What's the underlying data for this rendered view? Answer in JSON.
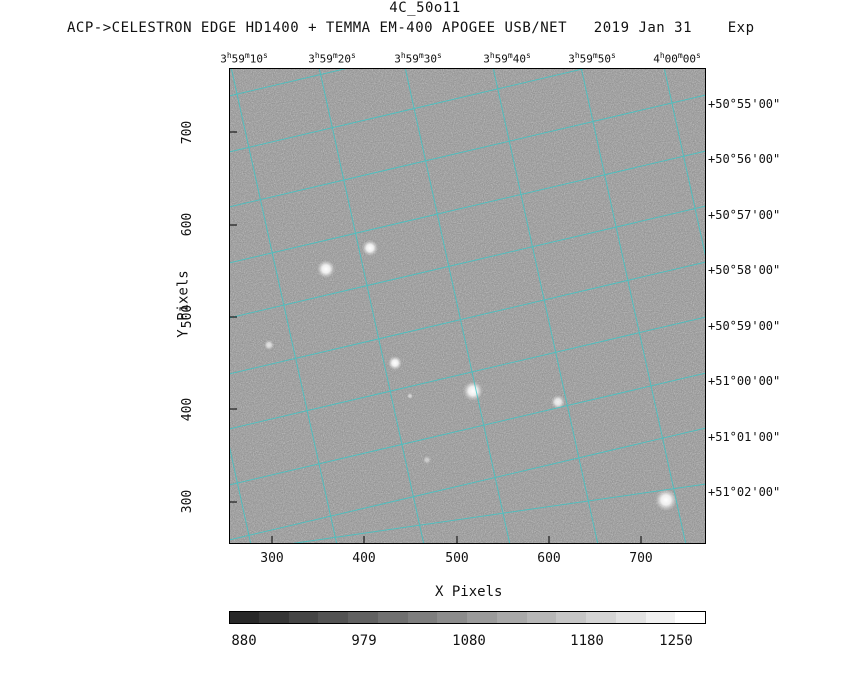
{
  "title": "4C_50o11",
  "subtitle": "ACP->CELESTRON EDGE HD1400 + TEMMA EM-400 APOGEE USB/NET   2019 Jan 31    Exp",
  "x_axis": {
    "label": "X Pixels",
    "ticks": [
      "300",
      "400",
      "500",
      "600",
      "700"
    ]
  },
  "y_axis": {
    "label": "Y Pixels",
    "ticks": [
      "300",
      "400",
      "500",
      "600",
      "700"
    ]
  },
  "ra_ticks": [
    {
      "h": "3",
      "hs": "h",
      "m": "59",
      "ms": "m",
      "s": "10",
      "ss": "s"
    },
    {
      "h": "3",
      "hs": "h",
      "m": "59",
      "ms": "m",
      "s": "20",
      "ss": "s"
    },
    {
      "h": "3",
      "hs": "h",
      "m": "59",
      "ms": "m",
      "s": "30",
      "ss": "s"
    },
    {
      "h": "3",
      "hs": "h",
      "m": "59",
      "ms": "m",
      "s": "40",
      "ss": "s"
    },
    {
      "h": "3",
      "hs": "h",
      "m": "59",
      "ms": "m",
      "s": "50",
      "ss": "s"
    },
    {
      "h": "4",
      "hs": "h",
      "m": "00",
      "ms": "m",
      "s": "00",
      "ss": "s"
    }
  ],
  "dec_ticks": [
    "+50°55'00\"",
    "+50°56'00\"",
    "+50°57'00\"",
    "+50°58'00\"",
    "+50°59'00\"",
    "+51°00'00\"",
    "+51°01'00\"",
    "+51°02'00\""
  ],
  "colorbar": {
    "labels": [
      "880",
      "979",
      "1080",
      "1180",
      "1250"
    ]
  },
  "colors": {
    "grid": "#35c8c8",
    "background": "#8a8a8a"
  }
}
